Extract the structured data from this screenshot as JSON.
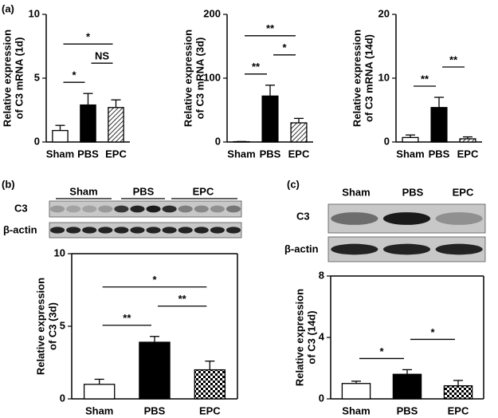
{
  "panel_labels": [
    "(a)",
    "(b)",
    "(c)"
  ],
  "blots": [
    {
      "lanes": [
        "Sham",
        "PBS",
        "EPC"
      ],
      "rows": [
        "C3",
        "β-actin"
      ]
    },
    {
      "lanes": [
        "Sham",
        "PBS",
        "EPC"
      ],
      "rows": [
        "C3",
        "β-actin"
      ]
    }
  ],
  "chart_data": [
    {
      "type": "bar",
      "ylabel": [
        "Relative expression",
        "of C3 mRNA (1d)"
      ],
      "categories": [
        "Sham",
        "PBS",
        "EPC"
      ],
      "values": [
        0.9,
        2.9,
        2.7
      ],
      "errors": [
        0.4,
        0.9,
        0.6
      ],
      "bar_styles": [
        "white",
        "black",
        "diagonal-hatch"
      ],
      "ylim": [
        0,
        10
      ],
      "yticks": [
        0,
        5,
        10
      ],
      "frame": false,
      "significance": [
        {
          "between": [
            "Sham",
            "PBS"
          ],
          "text": "*"
        },
        {
          "between": [
            "PBS",
            "EPC"
          ],
          "text": "NS"
        },
        {
          "between": [
            "Sham",
            "EPC"
          ],
          "text": "*"
        }
      ]
    },
    {
      "type": "bar",
      "ylabel": [
        "Relative expression",
        "of C3 mRNA (3d)"
      ],
      "categories": [
        "Sham",
        "PBS",
        "EPC"
      ],
      "values": [
        0.5,
        72,
        30
      ],
      "errors": [
        0.3,
        17,
        7
      ],
      "bar_styles": [
        "white",
        "black",
        "diagonal-hatch"
      ],
      "ylim": [
        0,
        200
      ],
      "yticks": [
        0,
        100,
        200
      ],
      "frame": false,
      "significance": [
        {
          "between": [
            "Sham",
            "PBS"
          ],
          "text": "**"
        },
        {
          "between": [
            "PBS",
            "EPC"
          ],
          "text": "*"
        },
        {
          "between": [
            "Sham",
            "EPC"
          ],
          "text": "**"
        }
      ]
    },
    {
      "type": "bar",
      "ylabel": [
        "Relative expression",
        "of C3 mRNA (14d)"
      ],
      "categories": [
        "Sham",
        "PBS",
        "EPC"
      ],
      "values": [
        0.7,
        5.4,
        0.5
      ],
      "errors": [
        0.4,
        1.6,
        0.3
      ],
      "bar_styles": [
        "white",
        "black",
        "diagonal-hatch"
      ],
      "ylim": [
        0,
        20
      ],
      "yticks": [
        0,
        10,
        20
      ],
      "frame": false,
      "significance": [
        {
          "between": [
            "Sham",
            "PBS"
          ],
          "text": "**"
        },
        {
          "between": [
            "PBS",
            "EPC"
          ],
          "text": "**"
        }
      ]
    },
    {
      "type": "bar",
      "ylabel": [
        "Relative expression",
        "of C3 (3d)"
      ],
      "categories": [
        "Sham",
        "PBS",
        "EPC"
      ],
      "values": [
        1.0,
        3.9,
        2.0
      ],
      "errors": [
        0.35,
        0.4,
        0.6
      ],
      "bar_styles": [
        "white",
        "black",
        "checker"
      ],
      "ylim": [
        0,
        10
      ],
      "yticks": [
        0,
        5,
        10
      ],
      "frame": true,
      "significance": [
        {
          "between": [
            "Sham",
            "PBS"
          ],
          "text": "**"
        },
        {
          "between": [
            "PBS",
            "EPC"
          ],
          "text": "**"
        },
        {
          "between": [
            "Sham",
            "EPC"
          ],
          "text": "*"
        }
      ]
    },
    {
      "type": "bar",
      "ylabel": [
        "Relative expression",
        "of C3 (14d)"
      ],
      "categories": [
        "Sham",
        "PBS",
        "EPC"
      ],
      "values": [
        1.0,
        1.6,
        0.85
      ],
      "errors": [
        0.15,
        0.3,
        0.35
      ],
      "bar_styles": [
        "white",
        "black",
        "checker"
      ],
      "ylim": [
        0,
        8
      ],
      "yticks": [
        0,
        4,
        8
      ],
      "frame": true,
      "significance": [
        {
          "between": [
            "Sham",
            "PBS"
          ],
          "text": "*"
        },
        {
          "between": [
            "PBS",
            "EPC"
          ],
          "text": "*"
        }
      ]
    }
  ]
}
